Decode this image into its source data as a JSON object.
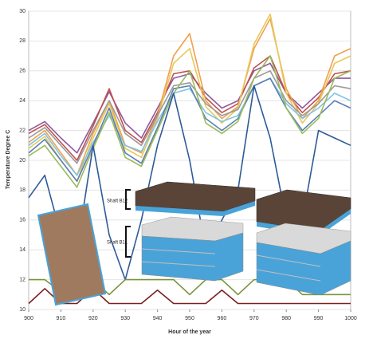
{
  "chart_data": {
    "type": "line",
    "x_label": "Hour of the year",
    "y_label": "Temperature Degree C",
    "x": [
      900,
      905,
      910,
      915,
      920,
      925,
      930,
      935,
      940,
      945,
      950,
      955,
      960,
      965,
      970,
      975,
      980,
      985,
      990,
      995,
      1000
    ],
    "xlim": [
      900,
      1000
    ],
    "xticks": [
      900,
      910,
      920,
      930,
      940,
      950,
      960,
      970,
      980,
      990,
      1000
    ],
    "ylim": [
      10,
      30
    ],
    "yticks": [
      10,
      12,
      14,
      16,
      18,
      20,
      22,
      24,
      26,
      28,
      30
    ],
    "grid": true,
    "series": [
      {
        "color": "#8e5a9e",
        "values": [
          22,
          22.6,
          21.5,
          20.5,
          22.5,
          24.6,
          22.5,
          21.5,
          23.5,
          25.5,
          25.8,
          24.5,
          23.5,
          24,
          26,
          26.5,
          24.5,
          23.5,
          24.5,
          25.5,
          25.5
        ]
      },
      {
        "color": "#c0504d",
        "values": [
          21.8,
          22.4,
          21.2,
          20,
          22.3,
          24.8,
          22,
          21.2,
          23.2,
          25.8,
          26,
          24.2,
          23.2,
          23.8,
          26.2,
          27,
          24.5,
          23.2,
          24.2,
          25.8,
          26
        ]
      },
      {
        "color": "#f0a04b",
        "values": [
          21.2,
          22,
          20.5,
          19,
          21.8,
          24,
          21,
          20.5,
          23,
          27,
          28.5,
          24,
          22.8,
          23.6,
          27.5,
          29.5,
          24.8,
          22.8,
          24,
          27,
          27.5
        ]
      },
      {
        "color": "#e8c85a",
        "values": [
          20.8,
          21.6,
          20,
          18.6,
          21.5,
          23.8,
          20.8,
          20.2,
          22.8,
          26.5,
          27.5,
          23.6,
          22.5,
          23.5,
          27.8,
          29.8,
          24.5,
          22.5,
          23.8,
          26.5,
          27
        ]
      },
      {
        "color": "#7fc4e8",
        "values": [
          21,
          21.8,
          20.3,
          19,
          21.2,
          23,
          21,
          20.6,
          22.6,
          24.5,
          24.8,
          23.2,
          22.6,
          23,
          25,
          25.5,
          23.8,
          22.8,
          23.5,
          24.5,
          24
        ]
      },
      {
        "color": "#9a9a9a",
        "values": [
          21.5,
          22.2,
          21,
          19.8,
          22,
          24,
          21.8,
          21,
          23,
          25,
          25.2,
          23.8,
          23,
          23.4,
          25.5,
          26,
          24,
          23,
          23.8,
          25,
          24.8
        ]
      },
      {
        "color": "#5b7fb5",
        "values": [
          20.5,
          21.4,
          20,
          18.6,
          21,
          23.5,
          20.5,
          19.8,
          22.2,
          24.8,
          25,
          22.8,
          22,
          22.8,
          25,
          25.5,
          23.5,
          22,
          23,
          24,
          23.5
        ]
      },
      {
        "color": "#9bbb59",
        "values": [
          20.3,
          21,
          19.6,
          18.2,
          20.8,
          23.2,
          20.2,
          19.6,
          22,
          24.5,
          26,
          22.5,
          21.8,
          22.6,
          25.5,
          27,
          23.5,
          21.8,
          22.8,
          25.5,
          26
        ]
      },
      {
        "color": "#2e5a9a",
        "values": [
          17.5,
          19,
          15,
          14,
          21,
          15,
          12,
          16,
          21,
          24.5,
          20,
          14,
          16,
          18,
          25,
          21.5,
          16,
          16,
          22,
          21.5,
          21
        ]
      },
      {
        "color": "#77933c",
        "values": [
          12,
          12,
          11.2,
          12,
          12,
          11,
          12,
          12,
          12,
          12,
          11,
          12,
          12,
          11,
          12,
          12,
          12,
          11,
          11,
          11,
          11
        ]
      },
      {
        "color": "#7b2020",
        "values": [
          10.4,
          11.4,
          10.4,
          10.4,
          11.4,
          10.4,
          10.4,
          10.4,
          11.3,
          10.4,
          10.4,
          10.4,
          11.3,
          10.4,
          10.4,
          10.4,
          10.4,
          10.4,
          10.4,
          10.4,
          10.4
        ]
      }
    ],
    "annotations": [
      "Shaft B12",
      "Shaft B11"
    ]
  }
}
